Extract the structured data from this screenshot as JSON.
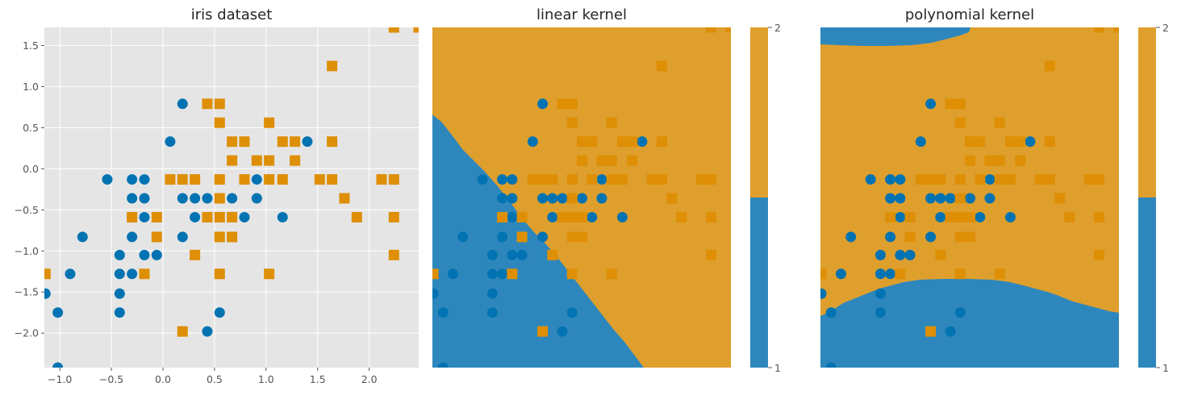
{
  "figure": {
    "panel_titles": [
      "iris dataset",
      "linear kernel",
      "polynomial kernel"
    ]
  },
  "chart_data": [
    {
      "type": "scatter",
      "title": "iris dataset",
      "xlabel": "",
      "ylabel": "",
      "xlim": [
        -1.15,
        2.48
      ],
      "ylim": [
        -2.42,
        1.72
      ],
      "xticks": [
        "−1.0",
        "−0.5",
        "0.0",
        "0.5",
        "1.0",
        "1.5",
        "2.0"
      ],
      "xtick_values": [
        -1.0,
        -0.5,
        0.0,
        0.5,
        1.0,
        1.5,
        2.0
      ],
      "yticks": [
        "1.5",
        "1.0",
        "0.5",
        "0.0",
        "−0.5",
        "−1.0",
        "−1.5",
        "−2.0"
      ],
      "ytick_values": [
        1.5,
        1.0,
        0.5,
        0.0,
        -0.5,
        -1.0,
        -1.5,
        -2.0
      ],
      "grid": true,
      "series": [
        {
          "marker": "circle",
          "color": "#0173b2",
          "points": [
            [
              -1.14,
              -1.52
            ],
            [
              -1.02,
              -1.75
            ],
            [
              -1.02,
              -2.42
            ],
            [
              -0.9,
              -1.28
            ],
            [
              -0.78,
              -0.83
            ],
            [
              -0.54,
              -0.13
            ],
            [
              -0.42,
              -1.05
            ],
            [
              -0.42,
              -1.28
            ],
            [
              -0.42,
              -1.52
            ],
            [
              -0.42,
              -1.75
            ],
            [
              -0.3,
              -0.13
            ],
            [
              -0.3,
              -0.36
            ],
            [
              -0.3,
              -0.59
            ],
            [
              -0.3,
              -0.83
            ],
            [
              -0.3,
              -1.28
            ],
            [
              -0.18,
              -0.13
            ],
            [
              -0.18,
              -0.36
            ],
            [
              -0.18,
              -0.59
            ],
            [
              -0.18,
              -1.05
            ],
            [
              -0.06,
              -1.05
            ],
            [
              0.07,
              0.33
            ],
            [
              0.19,
              0.79
            ],
            [
              0.19,
              -0.36
            ],
            [
              0.19,
              -0.83
            ],
            [
              0.31,
              -0.36
            ],
            [
              0.31,
              -0.59
            ],
            [
              0.43,
              -0.36
            ],
            [
              0.43,
              -1.98
            ],
            [
              0.55,
              -1.75
            ],
            [
              0.67,
              -0.36
            ],
            [
              0.79,
              -0.59
            ],
            [
              0.91,
              -0.13
            ],
            [
              0.91,
              -0.36
            ],
            [
              1.16,
              -0.59
            ],
            [
              1.4,
              0.33
            ]
          ]
        },
        {
          "marker": "square",
          "color": "#de8f05",
          "points": [
            [
              -1.14,
              -1.28
            ],
            [
              -0.3,
              -0.59
            ],
            [
              -0.18,
              -1.28
            ],
            [
              -0.06,
              -0.59
            ],
            [
              -0.06,
              -0.83
            ],
            [
              0.07,
              -0.13
            ],
            [
              0.19,
              -0.13
            ],
            [
              0.19,
              -1.98
            ],
            [
              0.31,
              -0.13
            ],
            [
              0.31,
              -1.05
            ],
            [
              0.43,
              0.79
            ],
            [
              0.43,
              -0.59
            ],
            [
              0.55,
              0.79
            ],
            [
              0.55,
              0.56
            ],
            [
              0.55,
              -0.13
            ],
            [
              0.55,
              -0.36
            ],
            [
              0.55,
              -0.59
            ],
            [
              0.55,
              -0.83
            ],
            [
              0.55,
              -1.28
            ],
            [
              0.67,
              0.33
            ],
            [
              0.67,
              0.1
            ],
            [
              0.67,
              -0.59
            ],
            [
              0.67,
              -0.83
            ],
            [
              0.79,
              0.33
            ],
            [
              0.79,
              -0.13
            ],
            [
              0.91,
              0.1
            ],
            [
              1.03,
              0.56
            ],
            [
              1.03,
              0.1
            ],
            [
              1.03,
              -0.13
            ],
            [
              1.03,
              -1.28
            ],
            [
              1.16,
              0.33
            ],
            [
              1.16,
              -0.13
            ],
            [
              1.28,
              0.33
            ],
            [
              1.28,
              0.1
            ],
            [
              1.52,
              -0.13
            ],
            [
              1.64,
              1.25
            ],
            [
              1.64,
              0.33
            ],
            [
              1.64,
              -0.13
            ],
            [
              1.76,
              -0.36
            ],
            [
              1.88,
              -0.59
            ],
            [
              2.12,
              -0.13
            ],
            [
              2.24,
              1.72
            ],
            [
              2.24,
              -0.13
            ],
            [
              2.24,
              -0.59
            ],
            [
              2.24,
              -1.05
            ],
            [
              2.48,
              1.72
            ]
          ]
        }
      ]
    },
    {
      "type": "heatmap",
      "title": "linear kernel",
      "xlabel": "",
      "ylabel": "",
      "decision_regions": [
        "#de8f05",
        "#0173b2"
      ],
      "overlay": "same points as iris dataset",
      "colorbar": {
        "ticks": [
          "2",
          "1"
        ],
        "colors": [
          "#de8f05",
          "#0173b2"
        ]
      }
    },
    {
      "type": "heatmap",
      "title": "polynomial kernel",
      "xlabel": "",
      "ylabel": "",
      "decision_regions": [
        "#de8f05",
        "#0173b2"
      ],
      "overlay": "same points as iris dataset",
      "colorbar": {
        "ticks": [
          "2",
          "1"
        ],
        "colors": [
          "#de8f05",
          "#0173b2"
        ]
      }
    }
  ]
}
